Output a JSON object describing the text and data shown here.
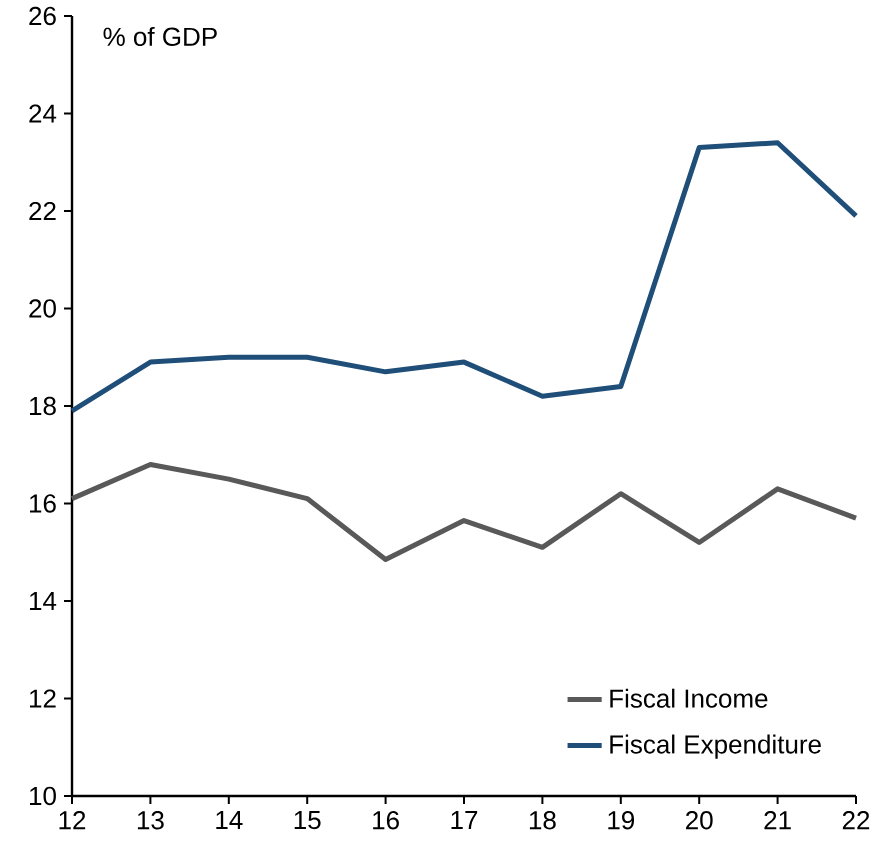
{
  "chart_data": {
    "type": "line",
    "ylabel": "% of GDP",
    "x": [
      12,
      13,
      14,
      15,
      16,
      17,
      18,
      19,
      20,
      21,
      22
    ],
    "series": [
      {
        "name": "Fiscal Income",
        "color": "#595959",
        "values": [
          16.1,
          16.8,
          16.5,
          16.1,
          14.85,
          15.65,
          15.1,
          16.2,
          15.2,
          16.3,
          15.7
        ]
      },
      {
        "name": "Fiscal Expenditure",
        "color": "#1f4e79",
        "values": [
          17.9,
          18.9,
          19.0,
          19.0,
          18.7,
          18.9,
          18.2,
          18.4,
          23.3,
          23.4,
          21.9
        ]
      }
    ],
    "xlim": [
      12,
      22
    ],
    "ylim": [
      10,
      26
    ],
    "xticks": [
      12,
      13,
      14,
      15,
      16,
      17,
      18,
      19,
      20,
      21,
      22
    ],
    "yticks": [
      10,
      12,
      14,
      16,
      18,
      20,
      22,
      24,
      26
    ],
    "legend": "bottom right",
    "grid": false,
    "marker": "none",
    "line_style": "solid"
  }
}
